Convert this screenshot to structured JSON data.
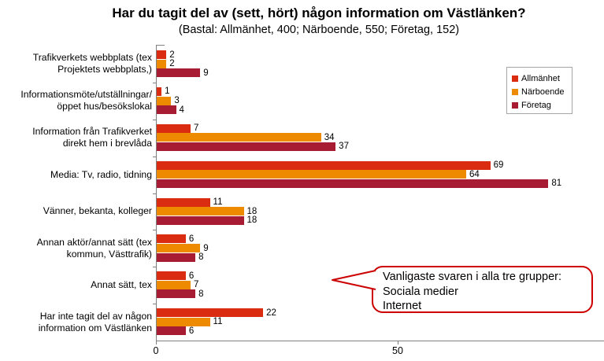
{
  "chart_data": {
    "type": "bar",
    "orientation": "horizontal",
    "title": "Har du tagit del av (sett, hört) någon information om Västlänken?",
    "subtitle": "(Bastal: Allmänhet, 400; Närboende, 550; Företag, 152)",
    "categories": [
      [
        "Trafikverkets webbplats (tex",
        "Projektets webbplats,)"
      ],
      [
        "Informationsmöte/utställningar/",
        "öppet hus/besökslokal"
      ],
      [
        "Information från Trafikverket",
        "direkt hem i brevlåda"
      ],
      [
        "Media: Tv, radio, tidning"
      ],
      [
        "Vänner, bekanta, kolleger"
      ],
      [
        "Annan aktör/annat sätt (tex",
        "kommun, Västtrafik)"
      ],
      [
        "Annat sätt, tex"
      ],
      [
        "Har inte tagit del av någon",
        "information om Västlänken"
      ]
    ],
    "series": [
      {
        "name": "Allmänhet",
        "color": "#da2c10",
        "values": [
          2,
          1,
          7,
          69,
          11,
          6,
          6,
          22
        ]
      },
      {
        "name": "Närboende",
        "color": "#ee8a00",
        "values": [
          2,
          3,
          34,
          64,
          18,
          9,
          7,
          11
        ]
      },
      {
        "name": "Företag",
        "color": "#a71b33",
        "values": [
          9,
          4,
          37,
          81,
          18,
          8,
          8,
          6
        ]
      }
    ],
    "xlim": [
      0,
      92
    ],
    "x_ticks": [
      0,
      50
    ],
    "grid": false,
    "legend_position": "upper-right",
    "value_labels": true
  },
  "callout": {
    "lines": [
      "Vanligaste svaren i alla tre grupper:",
      "Sociala medier",
      "Internet"
    ],
    "border_color": "#cc0000"
  },
  "axis_color": "#7f7f7f"
}
